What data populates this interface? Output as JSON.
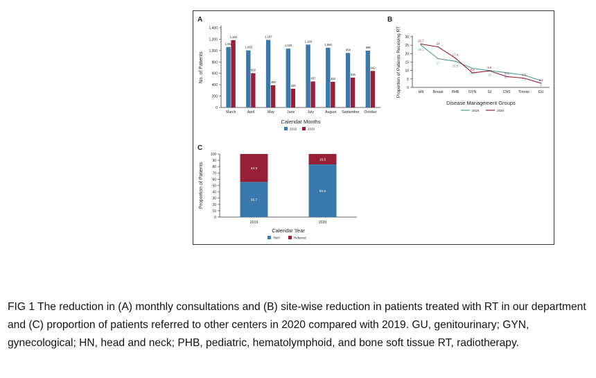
{
  "figure": {
    "caption": "FIG 1 The reduction in (A) monthly consultations and (B) site-wise reduction in patients treated with RT in our department and (C) proportion of patients referred to other centers in 2020 compared with 2019. GU, genitourinary; GYN, gynecological; HN, head and neck; PHB, pediatric, hematolymphoid, and bone soft tissue RT, radiotherapy."
  },
  "chart_data": [
    {
      "panel": "A",
      "type": "bar",
      "xlabel": "Calendar Months",
      "ylabel": "No. of Patients",
      "ylim": [
        0,
        1400
      ],
      "yticks": [
        "0",
        "200",
        "400",
        "600",
        "800",
        "1,000",
        "1,200",
        "1,400"
      ],
      "categories": [
        "March",
        "April",
        "May",
        "June",
        "July",
        "August",
        "September",
        "October"
      ],
      "series": [
        {
          "name": "2019",
          "color": "#3b78ab",
          "values": [
            1062,
            1003,
            1187,
            1033,
            1104,
            1050,
            958,
            998
          ],
          "labels": [
            "1,062",
            "1,003",
            "1,187",
            "1,033",
            "1,104",
            "1,050",
            "958",
            "998"
          ]
        },
        {
          "name": "2020",
          "color": "#962038",
          "values": [
            1182,
            602,
            390,
            329,
            457,
            452,
            525,
            642
          ],
          "labels": [
            "1,182",
            "602",
            "390",
            "329",
            "457",
            "452",
            "525",
            "642"
          ]
        }
      ],
      "legend": "bottom"
    },
    {
      "panel": "B",
      "type": "line",
      "xlabel": "Disease Management Groups",
      "ylabel": "Proportion of Patients Receiving RT",
      "ylim": [
        0,
        30
      ],
      "yticks": [
        "0",
        "5",
        "10",
        "15",
        "20",
        "25",
        "30"
      ],
      "categories": [
        "HN",
        "Breast",
        "PHB",
        "GYN",
        "GI",
        "CNS",
        "Thorax",
        "GU"
      ],
      "series": [
        {
          "name": "2019",
          "color": "#4f9c96",
          "values": [
            25.1,
            17,
            15.5,
            11.3,
            10,
            8.7,
            7.3,
            4
          ],
          "labels": [
            "25.1",
            "17",
            "15.5",
            "11.3",
            "10",
            "8.7",
            "7.3",
            "4"
          ]
        },
        {
          "name": "2020",
          "color": "#962038",
          "values": [
            25.7,
            24,
            17.4,
            8.6,
            9.8,
            6.4,
            5.5,
            2.5
          ],
          "labels": [
            "25.7",
            "24",
            "17.4",
            "8.6",
            "9.8",
            "6.4",
            "5.5",
            "2.5"
          ]
        }
      ],
      "legend": "bottom"
    },
    {
      "panel": "C",
      "type": "bar",
      "stacked": true,
      "xlabel": "Calendar Year",
      "ylabel": "Proportion of Patients",
      "ylim": [
        0,
        100
      ],
      "yticks": [
        "0",
        "10",
        "20",
        "30",
        "40",
        "50",
        "60",
        "70",
        "80",
        "90",
        "100"
      ],
      "categories": [
        "2019",
        "2020"
      ],
      "series": [
        {
          "name": "TMH",
          "color": "#3b78ab",
          "values": [
            55.7,
            83.5
          ],
          "labels": [
            "55.7",
            "83.5"
          ]
        },
        {
          "name": "Referred",
          "color": "#962038",
          "values": [
            44.3,
            16.5
          ],
          "labels": [
            "44.3",
            "16.5"
          ]
        }
      ],
      "legend": "bottom"
    }
  ]
}
